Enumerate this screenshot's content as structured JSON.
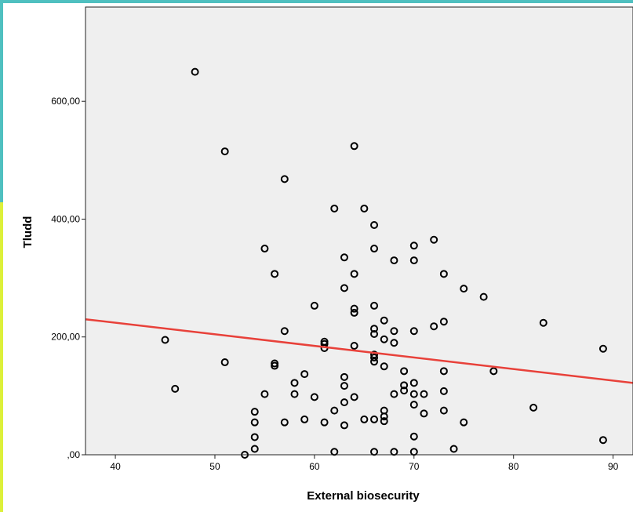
{
  "chart_data": {
    "type": "scatter",
    "title": "",
    "xlabel": "External biosecurity",
    "ylabel": "Tludd",
    "xlim": [
      37,
      92
    ],
    "ylim": [
      0,
      760
    ],
    "x_ticks": [
      40,
      50,
      60,
      70,
      80,
      90
    ],
    "x_tick_labels": [
      "40",
      "50",
      "60",
      "70",
      "80",
      "90"
    ],
    "y_ticks": [
      0,
      200,
      400,
      600
    ],
    "y_tick_labels": [
      ",00",
      "200,00",
      "400,00",
      "600,00"
    ],
    "grid": false,
    "legend": "none",
    "colors": {
      "plot_background": "#efefef",
      "marker": "#000000",
      "fit_line": "#e8413a"
    },
    "fit_line": {
      "x": [
        37,
        92
      ],
      "y": [
        230,
        122
      ]
    },
    "points": [
      [
        45,
        195
      ],
      [
        46,
        112
      ],
      [
        48,
        650
      ],
      [
        51,
        515
      ],
      [
        51,
        157
      ],
      [
        53,
        0
      ],
      [
        54,
        10
      ],
      [
        54,
        30
      ],
      [
        54,
        55
      ],
      [
        54,
        73
      ],
      [
        55,
        350
      ],
      [
        55,
        103
      ],
      [
        56,
        307
      ],
      [
        56,
        155
      ],
      [
        56,
        151
      ],
      [
        57,
        468
      ],
      [
        57,
        210
      ],
      [
        57,
        55
      ],
      [
        58,
        122
      ],
      [
        58,
        103
      ],
      [
        59,
        137
      ],
      [
        59,
        60
      ],
      [
        60,
        253
      ],
      [
        60,
        98
      ],
      [
        61,
        192
      ],
      [
        61,
        188
      ],
      [
        61,
        181
      ],
      [
        61,
        55
      ],
      [
        62,
        418
      ],
      [
        62,
        75
      ],
      [
        62,
        5
      ],
      [
        63,
        335
      ],
      [
        63,
        283
      ],
      [
        63,
        132
      ],
      [
        63,
        117
      ],
      [
        63,
        89
      ],
      [
        63,
        50
      ],
      [
        64,
        524
      ],
      [
        64,
        307
      ],
      [
        64,
        248
      ],
      [
        64,
        241
      ],
      [
        64,
        185
      ],
      [
        64,
        98
      ],
      [
        65,
        418
      ],
      [
        65,
        60
      ],
      [
        66,
        390
      ],
      [
        66,
        350
      ],
      [
        66,
        253
      ],
      [
        66,
        214
      ],
      [
        66,
        205
      ],
      [
        66,
        170
      ],
      [
        66,
        165
      ],
      [
        66,
        158
      ],
      [
        66,
        60
      ],
      [
        66,
        5
      ],
      [
        67,
        228
      ],
      [
        67,
        196
      ],
      [
        67,
        150
      ],
      [
        67,
        75
      ],
      [
        67,
        65
      ],
      [
        67,
        57
      ],
      [
        68,
        330
      ],
      [
        68,
        210
      ],
      [
        68,
        190
      ],
      [
        68,
        103
      ],
      [
        68,
        5
      ],
      [
        69,
        142
      ],
      [
        69,
        118
      ],
      [
        69,
        109
      ],
      [
        70,
        355
      ],
      [
        70,
        330
      ],
      [
        70,
        210
      ],
      [
        70,
        122
      ],
      [
        70,
        103
      ],
      [
        70,
        85
      ],
      [
        70,
        31
      ],
      [
        70,
        5
      ],
      [
        71,
        103
      ],
      [
        71,
        70
      ],
      [
        72,
        365
      ],
      [
        72,
        218
      ],
      [
        73,
        307
      ],
      [
        73,
        226
      ],
      [
        73,
        142
      ],
      [
        73,
        108
      ],
      [
        73,
        75
      ],
      [
        74,
        10
      ],
      [
        75,
        282
      ],
      [
        75,
        55
      ],
      [
        77,
        268
      ],
      [
        78,
        142
      ],
      [
        82,
        80
      ],
      [
        83,
        224
      ],
      [
        89,
        180
      ],
      [
        89,
        25
      ]
    ]
  }
}
